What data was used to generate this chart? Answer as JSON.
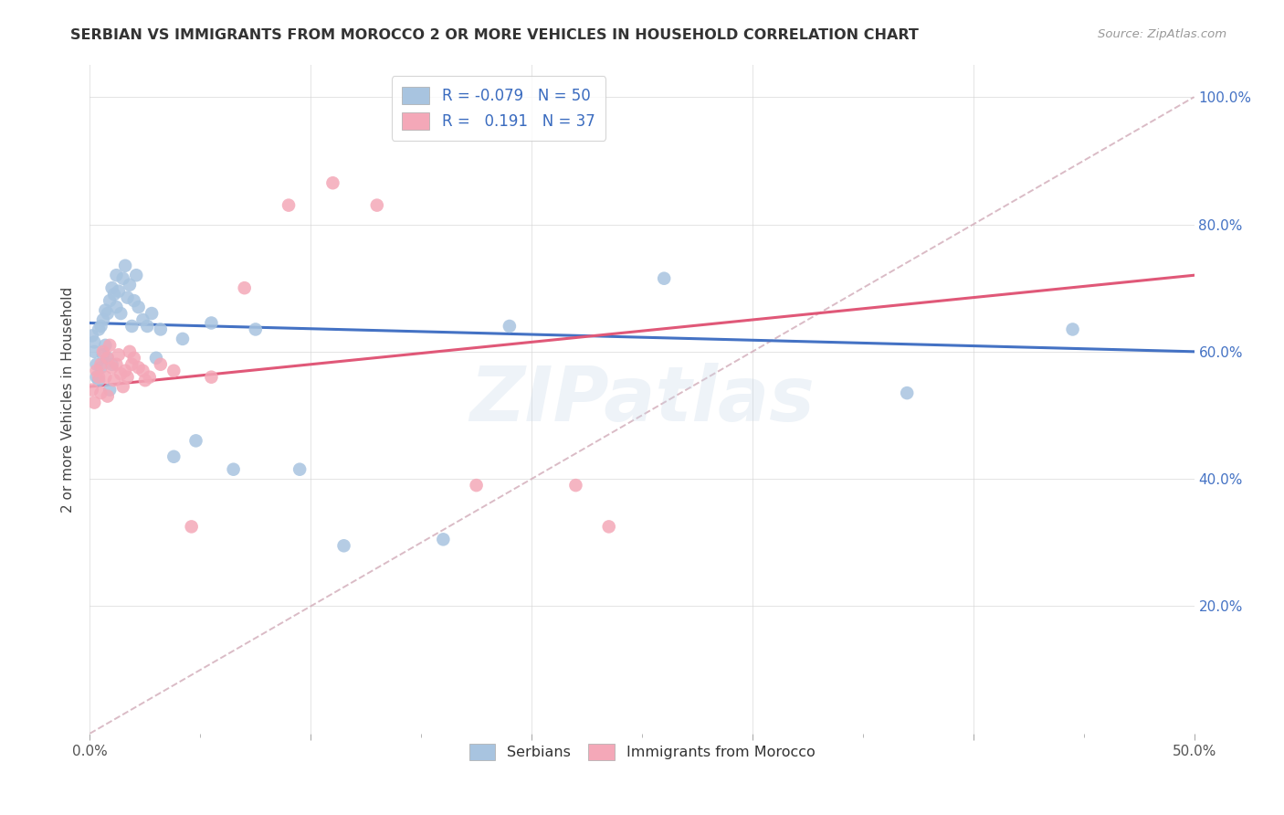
{
  "title": "SERBIAN VS IMMIGRANTS FROM MOROCCO 2 OR MORE VEHICLES IN HOUSEHOLD CORRELATION CHART",
  "source": "Source: ZipAtlas.com",
  "ylabel": "2 or more Vehicles in Household",
  "xmin": 0.0,
  "xmax": 0.5,
  "ymin": 0.0,
  "ymax": 1.05,
  "R_serbian": -0.079,
  "R_morocco": 0.191,
  "N_serbian": 50,
  "N_morocco": 37,
  "serbian_color": "#a8c4e0",
  "morocco_color": "#f4a8b8",
  "serbian_line_color": "#4472c4",
  "morocco_line_color": "#e05878",
  "diagonal_color": "#d4b0bc",
  "background_color": "#ffffff",
  "grid_color": "#d8d8d8",
  "serbian_x": [
    0.001,
    0.002,
    0.002,
    0.003,
    0.003,
    0.004,
    0.004,
    0.005,
    0.005,
    0.006,
    0.006,
    0.007,
    0.007,
    0.008,
    0.008,
    0.009,
    0.009,
    0.01,
    0.01,
    0.011,
    0.012,
    0.012,
    0.013,
    0.014,
    0.015,
    0.016,
    0.017,
    0.018,
    0.019,
    0.02,
    0.021,
    0.022,
    0.024,
    0.026,
    0.028,
    0.03,
    0.032,
    0.038,
    0.042,
    0.048,
    0.055,
    0.065,
    0.075,
    0.095,
    0.115,
    0.16,
    0.19,
    0.26,
    0.37,
    0.445
  ],
  "serbian_y": [
    0.625,
    0.615,
    0.6,
    0.58,
    0.56,
    0.635,
    0.555,
    0.64,
    0.575,
    0.65,
    0.595,
    0.665,
    0.61,
    0.66,
    0.59,
    0.68,
    0.54,
    0.7,
    0.58,
    0.69,
    0.72,
    0.67,
    0.695,
    0.66,
    0.715,
    0.735,
    0.685,
    0.705,
    0.64,
    0.68,
    0.72,
    0.67,
    0.65,
    0.64,
    0.66,
    0.59,
    0.635,
    0.435,
    0.62,
    0.46,
    0.645,
    0.415,
    0.635,
    0.415,
    0.295,
    0.305,
    0.64,
    0.715,
    0.535,
    0.635
  ],
  "morocco_x": [
    0.001,
    0.002,
    0.003,
    0.004,
    0.005,
    0.005,
    0.006,
    0.007,
    0.008,
    0.008,
    0.009,
    0.01,
    0.011,
    0.012,
    0.013,
    0.014,
    0.015,
    0.016,
    0.017,
    0.018,
    0.019,
    0.02,
    0.022,
    0.024,
    0.027,
    0.032,
    0.038,
    0.055,
    0.07,
    0.09,
    0.11,
    0.13,
    0.175,
    0.22,
    0.025,
    0.046,
    0.235
  ],
  "morocco_y": [
    0.54,
    0.52,
    0.57,
    0.56,
    0.58,
    0.535,
    0.6,
    0.56,
    0.53,
    0.59,
    0.61,
    0.575,
    0.555,
    0.58,
    0.595,
    0.565,
    0.545,
    0.57,
    0.56,
    0.6,
    0.58,
    0.59,
    0.575,
    0.57,
    0.56,
    0.58,
    0.57,
    0.56,
    0.7,
    0.83,
    0.865,
    0.83,
    0.39,
    0.39,
    0.555,
    0.325,
    0.325
  ],
  "watermark": "ZIPatlas",
  "serbian_line_x0": 0.0,
  "serbian_line_y0": 0.645,
  "serbian_line_x1": 0.5,
  "serbian_line_y1": 0.6,
  "morocco_line_x0": 0.0,
  "morocco_line_y0": 0.545,
  "morocco_line_x1": 0.5,
  "morocco_line_y1": 0.72
}
